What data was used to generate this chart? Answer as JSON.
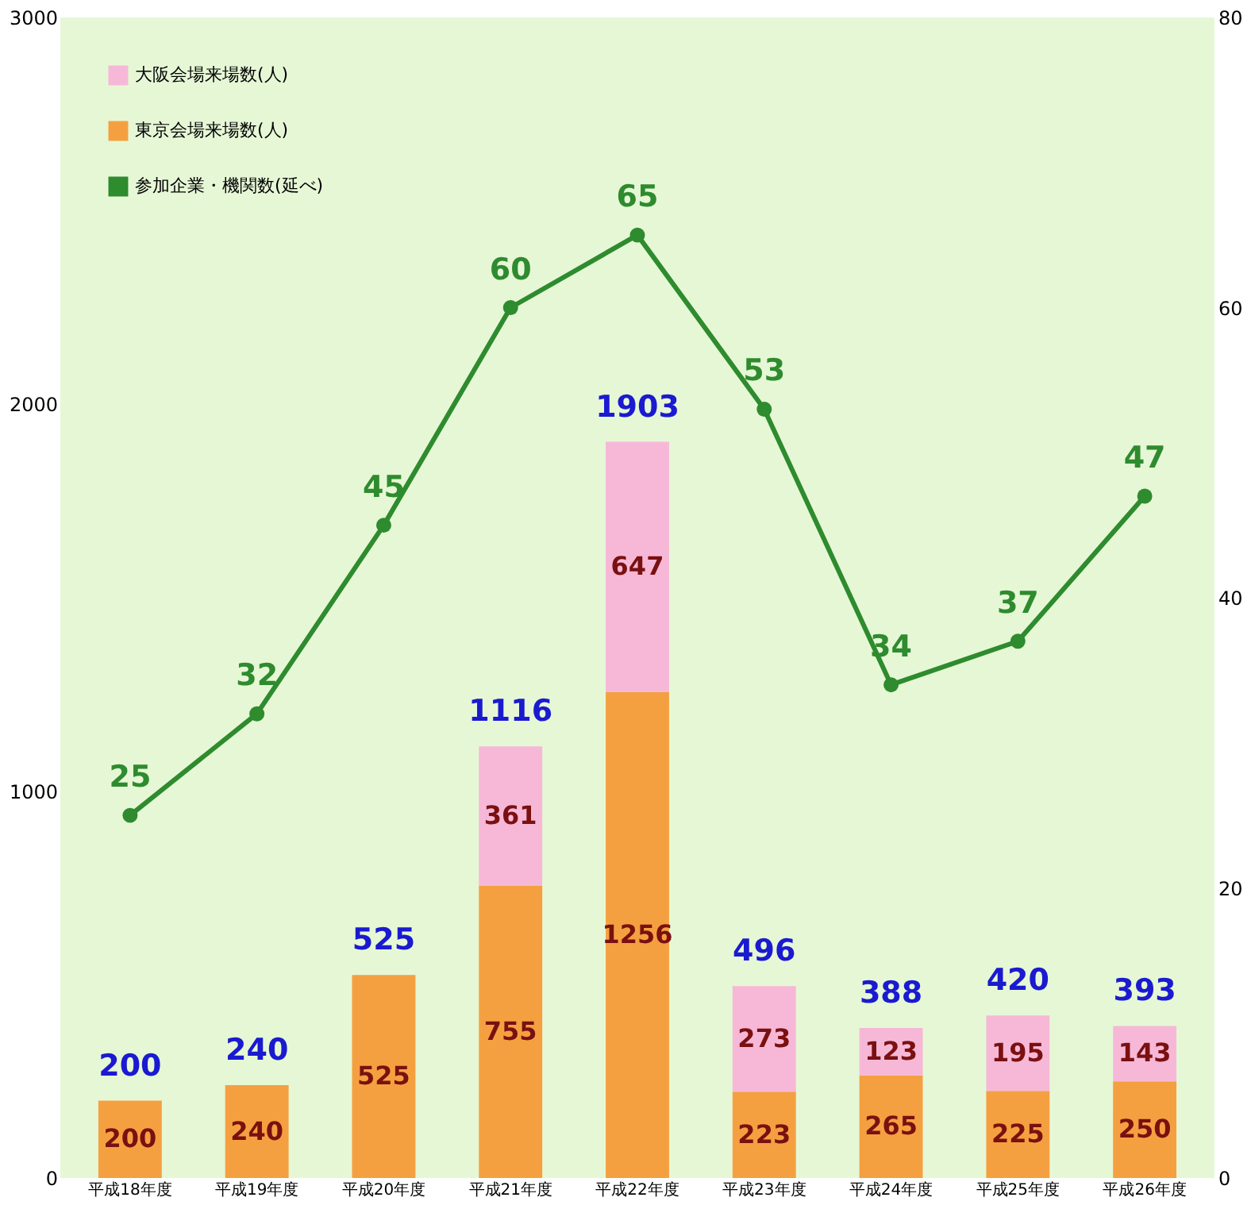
{
  "chart_data": {
    "type": "bar",
    "stacked": true,
    "data_labels": true,
    "legend": "top left",
    "grid": false,
    "marker": "circle",
    "line_style": "solid",
    "categories": [
      "平成18年度",
      "平成19年度",
      "平成20年度",
      "平成21年度",
      "平成22年度",
      "平成23年度",
      "平成24年度",
      "平成25年度",
      "平成26年度"
    ],
    "series": [
      {
        "name": "東京会場来場数(人)",
        "color": "#f5a040",
        "values": [
          200,
          240,
          525,
          755,
          1256,
          223,
          265,
          225,
          250
        ]
      },
      {
        "name": "大阪会場来場数(人)",
        "color": "#f7b8d8",
        "values": [
          null,
          null,
          null,
          361,
          647,
          273,
          123,
          195,
          143
        ]
      },
      {
        "name": "参加企業・機関数(延べ)",
        "type": "line",
        "axis": "y2",
        "color": "#2e8b2e",
        "values": [
          25,
          32,
          45,
          60,
          65,
          53,
          34,
          37,
          47
        ]
      }
    ],
    "totals": [
      "200",
      "240",
      "525",
      "1116",
      "1903",
      "496",
      "388",
      "420",
      "393"
    ],
    "ylim": [
      0,
      3000
    ],
    "yticks": [
      0,
      1000,
      2000,
      3000
    ],
    "y2lim": [
      0,
      80
    ],
    "y2ticks": [
      0,
      20,
      40,
      60,
      80
    ]
  }
}
